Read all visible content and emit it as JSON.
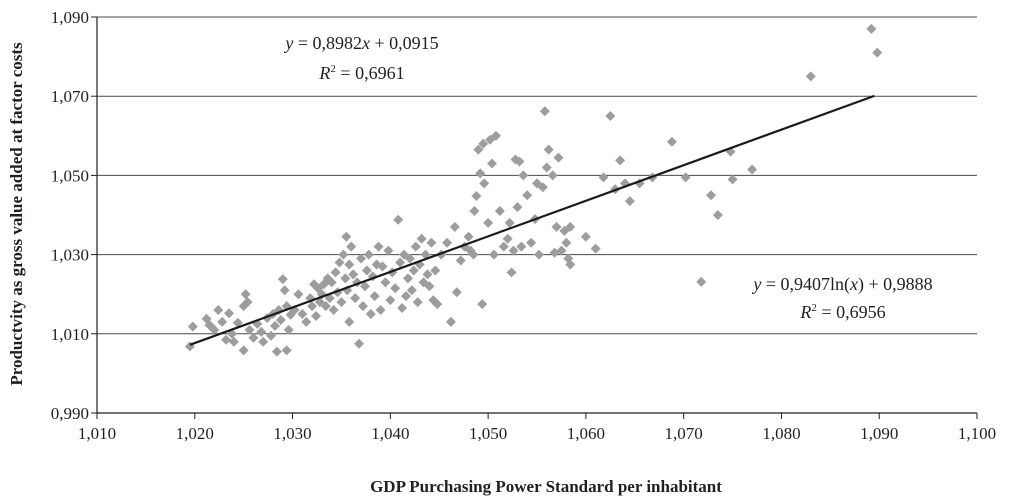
{
  "chart_data": {
    "type": "scatter",
    "title": "",
    "xlabel": "GDP Purchasing Power Standard per inhabitant",
    "ylabel": "Productvity as gross value added at factor costs",
    "xlim": [
      1.01,
      1.1
    ],
    "ylim": [
      0.99,
      1.09
    ],
    "x_ticks": [
      "1,010",
      "1,020",
      "1,030",
      "1,040",
      "1,050",
      "1,060",
      "1,070",
      "1,080",
      "1,090",
      "1,100"
    ],
    "y_ticks": [
      "0,990",
      "1,010",
      "1,030",
      "1,050",
      "1,070",
      "1,090"
    ],
    "grid": "horizontal",
    "marker": "diamond",
    "marker_color": "#9d9d9f",
    "line_color": "#1a1a1a",
    "trendlines": [
      {
        "type": "linear",
        "slope": 0.8982,
        "intercept": 0.0915,
        "x_range": [
          1.0195,
          1.0895
        ],
        "equation_prefix": "y",
        "equation_mid": " = 0,8982",
        "equation_var": "x",
        "equation_suffix": " + 0,0915",
        "r2_label": "R",
        "r2_sup": "2",
        "r2_value": " = 0,6961"
      },
      {
        "type": "logarithmic",
        "slope": 0.9407,
        "intercept": 0.9888,
        "equation_prefix": "y",
        "equation_mid": " = 0,9407ln(",
        "equation_var": "x",
        "equation_suffix": ") + 0,9888",
        "r2_label": "R",
        "r2_sup": "2",
        "r2_value": " = 0,6956"
      }
    ],
    "legend_marker": {
      "x": 1.0718,
      "y": 1.0231
    },
    "points": [
      [
        1.0195,
        1.0068
      ],
      [
        1.0198,
        1.0118
      ],
      [
        1.0212,
        1.0138
      ],
      [
        1.0215,
        1.0122
      ],
      [
        1.022,
        1.011
      ],
      [
        1.0224,
        1.016
      ],
      [
        1.0228,
        1.013
      ],
      [
        1.0232,
        1.0085
      ],
      [
        1.0235,
        1.0152
      ],
      [
        1.0238,
        1.01
      ],
      [
        1.024,
        1.008
      ],
      [
        1.0244,
        1.0128
      ],
      [
        1.025,
        1.017
      ],
      [
        1.0252,
        1.02
      ],
      [
        1.0254,
        1.018
      ],
      [
        1.025,
        1.0058
      ],
      [
        1.0256,
        1.011
      ],
      [
        1.026,
        1.009
      ],
      [
        1.0264,
        1.0125
      ],
      [
        1.0268,
        1.0105
      ],
      [
        1.027,
        1.008
      ],
      [
        1.0274,
        1.014
      ],
      [
        1.0278,
        1.0095
      ],
      [
        1.028,
        1.015
      ],
      [
        1.0282,
        1.012
      ],
      [
        1.0284,
        1.0055
      ],
      [
        1.0286,
        1.016
      ],
      [
        1.0288,
        1.0135
      ],
      [
        1.029,
        1.0238
      ],
      [
        1.0292,
        1.021
      ],
      [
        1.0294,
        1.017
      ],
      [
        1.0294,
        1.0058
      ],
      [
        1.0296,
        1.011
      ],
      [
        1.0298,
        1.0148
      ],
      [
        1.0302,
        1.016
      ],
      [
        1.0306,
        1.02
      ],
      [
        1.031,
        1.015
      ],
      [
        1.0314,
        1.013
      ],
      [
        1.0318,
        1.019
      ],
      [
        1.032,
        1.017
      ],
      [
        1.0322,
        1.0225
      ],
      [
        1.0324,
        1.0145
      ],
      [
        1.0326,
        1.0215
      ],
      [
        1.0328,
        1.018
      ],
      [
        1.033,
        1.02
      ],
      [
        1.0332,
        1.0225
      ],
      [
        1.0334,
        1.017
      ],
      [
        1.0336,
        1.024
      ],
      [
        1.0338,
        1.019
      ],
      [
        1.034,
        1.023
      ],
      [
        1.0342,
        1.016
      ],
      [
        1.0344,
        1.0255
      ],
      [
        1.0346,
        1.0205
      ],
      [
        1.0348,
        1.028
      ],
      [
        1.035,
        1.018
      ],
      [
        1.0352,
        1.03
      ],
      [
        1.0354,
        1.024
      ],
      [
        1.0355,
        1.0345
      ],
      [
        1.0356,
        1.021
      ],
      [
        1.0358,
        1.0275
      ],
      [
        1.0358,
        1.013
      ],
      [
        1.036,
        1.032
      ],
      [
        1.0362,
        1.025
      ],
      [
        1.0364,
        1.019
      ],
      [
        1.0366,
        1.023
      ],
      [
        1.0368,
        1.0075
      ],
      [
        1.037,
        1.029
      ],
      [
        1.0372,
        1.017
      ],
      [
        1.0374,
        1.022
      ],
      [
        1.0376,
        1.026
      ],
      [
        1.0378,
        1.03
      ],
      [
        1.038,
        1.015
      ],
      [
        1.0382,
        1.0245
      ],
      [
        1.0384,
        1.0195
      ],
      [
        1.0386,
        1.0275
      ],
      [
        1.0388,
        1.032
      ],
      [
        1.039,
        1.016
      ],
      [
        1.0392,
        1.027
      ],
      [
        1.0395,
        1.023
      ],
      [
        1.0398,
        1.031
      ],
      [
        1.04,
        1.0185
      ],
      [
        1.0402,
        1.0255
      ],
      [
        1.0405,
        1.0215
      ],
      [
        1.0408,
        1.0388
      ],
      [
        1.041,
        1.028
      ],
      [
        1.0412,
        1.0165
      ],
      [
        1.0414,
        1.03
      ],
      [
        1.0416,
        1.0195
      ],
      [
        1.0418,
        1.024
      ],
      [
        1.042,
        1.029
      ],
      [
        1.0422,
        1.021
      ],
      [
        1.0424,
        1.026
      ],
      [
        1.0426,
        1.032
      ],
      [
        1.0428,
        1.018
      ],
      [
        1.043,
        1.0275
      ],
      [
        1.0432,
        1.034
      ],
      [
        1.0434,
        1.023
      ],
      [
        1.0436,
        1.03
      ],
      [
        1.0438,
        1.025
      ],
      [
        1.044,
        1.022
      ],
      [
        1.0442,
        1.033
      ],
      [
        1.0444,
        1.0185
      ],
      [
        1.0446,
        1.026
      ],
      [
        1.0448,
        1.0175
      ],
      [
        1.0452,
        1.03
      ],
      [
        1.0458,
        1.033
      ],
      [
        1.0462,
        1.013
      ],
      [
        1.0466,
        1.037
      ],
      [
        1.0468,
        1.0205
      ],
      [
        1.0472,
        1.0285
      ],
      [
        1.0476,
        1.032
      ],
      [
        1.048,
        1.0345
      ],
      [
        1.0482,
        1.031
      ],
      [
        1.0485,
        1.03
      ],
      [
        1.0486,
        1.041
      ],
      [
        1.0488,
        1.0448
      ],
      [
        1.049,
        1.0565
      ],
      [
        1.0492,
        1.0505
      ],
      [
        1.0494,
        1.0175
      ],
      [
        1.0495,
        1.058
      ],
      [
        1.0496,
        1.048
      ],
      [
        1.05,
        1.038
      ],
      [
        1.0502,
        1.059
      ],
      [
        1.0504,
        1.053
      ],
      [
        1.0506,
        1.03
      ],
      [
        1.0508,
        1.06
      ],
      [
        1.0512,
        1.041
      ],
      [
        1.0516,
        1.032
      ],
      [
        1.052,
        1.034
      ],
      [
        1.0522,
        1.038
      ],
      [
        1.0524,
        1.0255
      ],
      [
        1.0526,
        1.031
      ],
      [
        1.0528,
        1.054
      ],
      [
        1.053,
        1.042
      ],
      [
        1.0532,
        1.0535
      ],
      [
        1.0534,
        1.032
      ],
      [
        1.0536,
        1.05
      ],
      [
        1.054,
        1.045
      ],
      [
        1.0544,
        1.033
      ],
      [
        1.0548,
        1.039
      ],
      [
        1.055,
        1.048
      ],
      [
        1.0552,
        1.03
      ],
      [
        1.0556,
        1.047
      ],
      [
        1.0558,
        1.0662
      ],
      [
        1.056,
        1.052
      ],
      [
        1.0562,
        1.0565
      ],
      [
        1.0566,
        1.05
      ],
      [
        1.0568,
        1.0305
      ],
      [
        1.057,
        1.037
      ],
      [
        1.0572,
        1.0545
      ],
      [
        1.0575,
        1.031
      ],
      [
        1.0578,
        1.036
      ],
      [
        1.058,
        1.033
      ],
      [
        1.0582,
        1.029
      ],
      [
        1.0584,
        1.037
      ],
      [
        1.0584,
        1.0275
      ],
      [
        1.06,
        1.0345
      ],
      [
        1.061,
        1.0315
      ],
      [
        1.0618,
        1.0495
      ],
      [
        1.0625,
        1.065
      ],
      [
        1.063,
        1.0465
      ],
      [
        1.0635,
        1.0538
      ],
      [
        1.064,
        1.048
      ],
      [
        1.0645,
        1.0435
      ],
      [
        1.0655,
        1.048
      ],
      [
        1.0668,
        1.0495
      ],
      [
        1.0688,
        1.0585
      ],
      [
        1.0702,
        1.0495
      ],
      [
        1.0728,
        1.045
      ],
      [
        1.0735,
        1.04
      ],
      [
        1.0748,
        1.056
      ],
      [
        1.075,
        1.049
      ],
      [
        1.077,
        1.0515
      ],
      [
        1.083,
        1.075
      ],
      [
        1.0892,
        1.087
      ],
      [
        1.0898,
        1.081
      ]
    ]
  }
}
